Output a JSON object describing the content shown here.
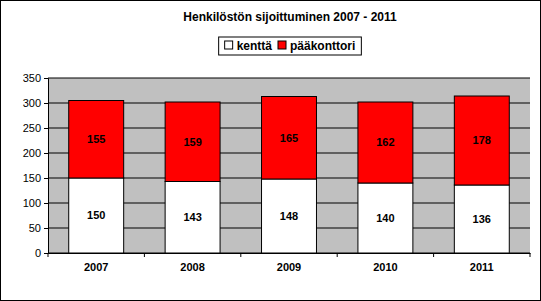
{
  "chart_data": {
    "type": "bar",
    "title": "Henkilöstön sijoittuminen 2007 - 2011",
    "categories": [
      "2007",
      "2008",
      "2009",
      "2010",
      "2011"
    ],
    "series": [
      {
        "name": "kenttä",
        "color": "#ffffff",
        "values": [
          150,
          143,
          148,
          140,
          136
        ]
      },
      {
        "name": "pääkonttori",
        "color": "#ff0000",
        "values": [
          155,
          159,
          165,
          162,
          178
        ]
      }
    ],
    "ylim": [
      0,
      350
    ],
    "yticks": [
      0,
      50,
      100,
      150,
      200,
      250,
      300,
      350
    ],
    "stacked": true,
    "data_labels": true,
    "grid": true,
    "legend": "top"
  }
}
